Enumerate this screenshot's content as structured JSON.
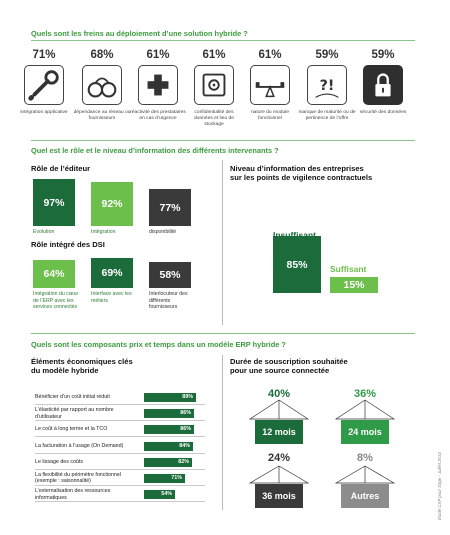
{
  "section1": {
    "title": "Quels sont les freins au déploiement d’une solution hybride ?",
    "items": [
      {
        "pct": "71%",
        "label": "intégration applicative",
        "icon": "wrench-icon",
        "style": "outline"
      },
      {
        "pct": "68%",
        "label": "dépendance au réseau ou fournisseurs",
        "icon": "handcuffs-icon",
        "style": "outline"
      },
      {
        "pct": "61%",
        "label": "réactivité des prestataires en cas d’urgence",
        "icon": "medical-cross-icon",
        "style": "outline"
      },
      {
        "pct": "61%",
        "label": "confidentialité des données et lieu de stockage",
        "icon": "safe-icon",
        "style": "outline"
      },
      {
        "pct": "61%",
        "label": "nature du module fonctionnel",
        "icon": "seesaw-icon",
        "style": "outline"
      },
      {
        "pct": "59%",
        "label": "manque de maturité ou de pertinence de l’offre",
        "icon": "question-exclamation-icon",
        "style": "outline"
      },
      {
        "pct": "59%",
        "label": "sécurité des données",
        "icon": "padlock-icon",
        "style": "dark"
      }
    ]
  },
  "section2": {
    "title": "Quel est le rôle et le niveau d’information des différents intervenants ?",
    "editor": {
      "title": "Rôle de l’éditeur",
      "bars": [
        {
          "value": "97%",
          "label": "Evolution"
        },
        {
          "value": "92%",
          "label": "Intégration"
        },
        {
          "value": "77%",
          "label": "disponibilité"
        }
      ]
    },
    "dsi": {
      "title": "Rôle intégré des DSI",
      "bars": [
        {
          "value": "64%",
          "label": "Intégration du cœur de l’ERP avec les services connectés"
        },
        {
          "value": "69%",
          "label": "Interface avec les métiers"
        },
        {
          "value": "58%",
          "label": "Interlocuteur des différents fournisseurs"
        }
      ]
    },
    "info": {
      "title_line1": "Niveau d’information des entreprises",
      "title_line2": "sur les points de vigilence contractuels",
      "insufficient_label": "Insuffisant",
      "insufficient_value": "85%",
      "sufficient_label": "Suffisant",
      "sufficient_value": "15%"
    }
  },
  "section3": {
    "title": "Quels sont les composants prix et temps dans un modèle ERP hybride ?",
    "econ_title_line1": "Éléments économiques clés",
    "econ_title_line2": "du modèle hybride",
    "duration_title_line1": "Durée de souscription souhaitée",
    "duration_title_line2": "pour une source connectée",
    "durations": [
      {
        "pct": "40%",
        "label": "12 mois"
      },
      {
        "pct": "36%",
        "label": "24 mois"
      },
      {
        "pct": "24%",
        "label": "36 mois"
      },
      {
        "pct": "8%",
        "label": "Autres"
      }
    ]
  },
  "credit": "Étude CXP pour Sage - Juillet 2014",
  "colors": {
    "green_title": "#3d9b3f",
    "dark_green": "#1c6b3b",
    "mid_green": "#2f9a48",
    "light_green": "#6cbf4a",
    "dark_grey": "#3a3a3a",
    "light_grey": "#8c8c8c"
  },
  "chart_data": [
    {
      "type": "bar",
      "title": "Quels sont les freins au déploiement d’une solution hybride ?",
      "categories": [
        "intégration applicative",
        "dépendance au réseau ou fournisseurs",
        "réactivité des prestataires en cas d’urgence",
        "confidentialité des données et lieu de stockage",
        "nature du module fonctionnel",
        "manque de maturité ou de pertinence de l’offre",
        "sécurité des données"
      ],
      "values": [
        71,
        68,
        61,
        61,
        61,
        59,
        59
      ]
    },
    {
      "type": "bar",
      "title": "Rôle de l’éditeur",
      "categories": [
        "Evolution",
        "Intégration",
        "disponibilité"
      ],
      "values": [
        97,
        92,
        77
      ],
      "ylim": [
        0,
        100
      ]
    },
    {
      "type": "bar",
      "title": "Rôle intégré des DSI",
      "categories": [
        "Intégration du cœur de l’ERP avec les services connectés",
        "Interface avec les métiers",
        "Interlocuteur des différents fournisseurs"
      ],
      "values": [
        64,
        69,
        58
      ],
      "ylim": [
        0,
        100
      ]
    },
    {
      "type": "bar",
      "title": "Niveau d’information des entreprises sur les points de vigilence contractuels",
      "categories": [
        "Insuffisant",
        "Suffisant"
      ],
      "values": [
        85,
        15
      ],
      "ylim": [
        0,
        100
      ]
    },
    {
      "type": "bar",
      "title": "Éléments économiques clés du modèle hybride",
      "orientation": "horizontal",
      "categories": [
        "Bénéficier d’un coût initial réduit",
        "L’élasticité par rapport au nombre d’utilisateur",
        "Le coût à long terme et la TCO",
        "La facturation à l’usage (On Demand)",
        "Le lissage des coûts",
        "La flexibilité du périmètre fonctionnel (exemple : saisonnalité)",
        "L’externalisation des ressources informatiques"
      ],
      "values": [
        89,
        86,
        86,
        84,
        82,
        71,
        54
      ],
      "value_labels": [
        "89%",
        "86%",
        "86%",
        "84%",
        "82%",
        "71%",
        "54%"
      ],
      "xlim": [
        0,
        100
      ]
    },
    {
      "type": "bar",
      "title": "Durée de souscription souhaitée pour une source connectée",
      "categories": [
        "12 mois",
        "24 mois",
        "36 mois",
        "Autres"
      ],
      "values": [
        40,
        36,
        24,
        8
      ]
    }
  ]
}
